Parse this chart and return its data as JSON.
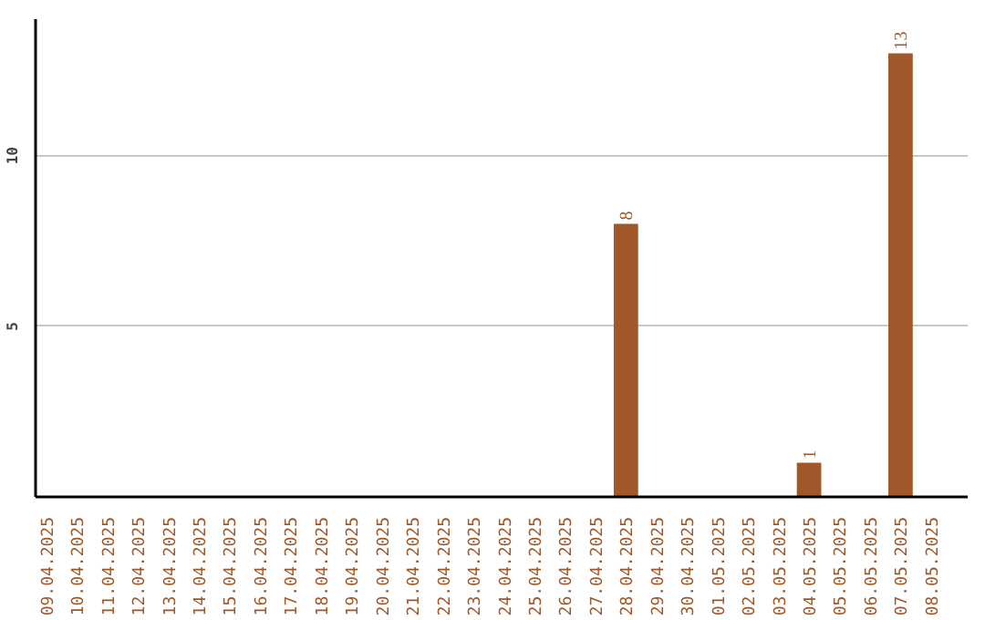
{
  "chart_data": {
    "type": "bar",
    "categories": [
      "09.04.2025",
      "10.04.2025",
      "11.04.2025",
      "12.04.2025",
      "13.04.2025",
      "14.04.2025",
      "15.04.2025",
      "16.04.2025",
      "17.04.2025",
      "18.04.2025",
      "19.04.2025",
      "20.04.2025",
      "21.04.2025",
      "22.04.2025",
      "23.04.2025",
      "24.04.2025",
      "25.04.2025",
      "26.04.2025",
      "27.04.2025",
      "28.04.2025",
      "29.04.2025",
      "30.04.2025",
      "01.05.2025",
      "02.05.2025",
      "03.05.2025",
      "04.05.2025",
      "05.05.2025",
      "06.05.2025",
      "07.05.2025",
      "08.05.2025"
    ],
    "values": [
      0,
      0,
      0,
      0,
      0,
      0,
      0,
      0,
      0,
      0,
      0,
      0,
      0,
      0,
      0,
      0,
      0,
      0,
      0,
      8,
      0,
      0,
      0,
      0,
      0,
      1,
      0,
      0,
      13,
      0
    ],
    "value_labels": [
      null,
      null,
      null,
      null,
      null,
      null,
      null,
      null,
      null,
      null,
      null,
      null,
      null,
      null,
      null,
      null,
      null,
      null,
      null,
      "8",
      null,
      null,
      null,
      null,
      null,
      "1",
      null,
      null,
      "13",
      null
    ],
    "color": "#a0582a",
    "ylim": [
      0,
      14
    ],
    "yticks": [
      5,
      10
    ],
    "grid": "y"
  }
}
